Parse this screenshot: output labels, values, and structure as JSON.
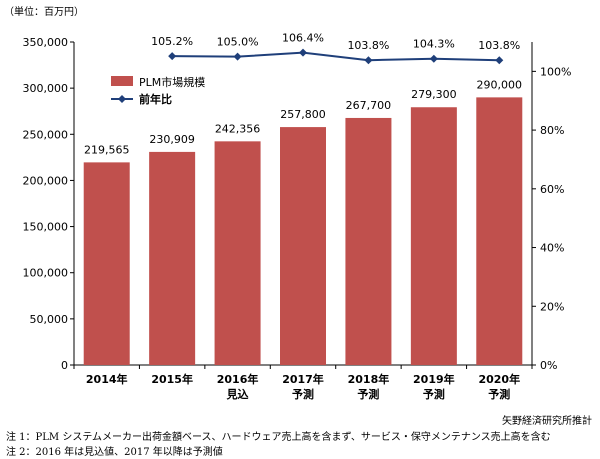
{
  "unit_label": "（単位：百万円）",
  "source": "矢野経済研究所推計",
  "notes": [
    "注 1：PLM システムメーカー出荷金額ベース、ハードウェア売上高を含まず、サービス・保守メンテナンス売上高を含む",
    "注 2：2016 年は見込値、2017 年以降は予測値"
  ],
  "colors": {
    "bar": "#c0504d",
    "line": "#1f3f7a",
    "axis": "#000000"
  },
  "chart_data": {
    "type": "bar",
    "categories": [
      "2014年",
      "2015年",
      "2016年\n見込",
      "2017年\n予測",
      "2018年\n予測",
      "2019年\n予測",
      "2020年\n予測"
    ],
    "series": [
      {
        "name": "PLM市場規模",
        "type": "bar",
        "axis": "left",
        "values": [
          219565,
          230909,
          242356,
          257800,
          267700,
          279300,
          290000
        ],
        "labels": [
          "219,565",
          "230,909",
          "242,356",
          "257,800",
          "267,700",
          "279,300",
          "290,000"
        ]
      },
      {
        "name": "前年比",
        "type": "line",
        "axis": "right",
        "values": [
          null,
          105.2,
          105.0,
          106.4,
          103.8,
          104.3,
          103.8
        ],
        "labels": [
          "",
          "105.2%",
          "105.0%",
          "106.4%",
          "103.8%",
          "104.3%",
          "103.8%"
        ]
      }
    ],
    "y_left": {
      "ylim": [
        0,
        350000
      ],
      "ticks": [
        0,
        50000,
        100000,
        150000,
        200000,
        250000,
        300000,
        350000
      ],
      "tick_labels": [
        "0",
        "50,000",
        "100,000",
        "150,000",
        "200,000",
        "250,000",
        "300,000",
        "350,000"
      ]
    },
    "y_right": {
      "ylim": [
        0,
        110
      ],
      "ticks": [
        0,
        20,
        40,
        60,
        80,
        100
      ],
      "tick_labels": [
        "0%",
        "20%",
        "40%",
        "60%",
        "80%",
        "100%"
      ]
    },
    "legend_position": "top-left",
    "grid": false
  }
}
